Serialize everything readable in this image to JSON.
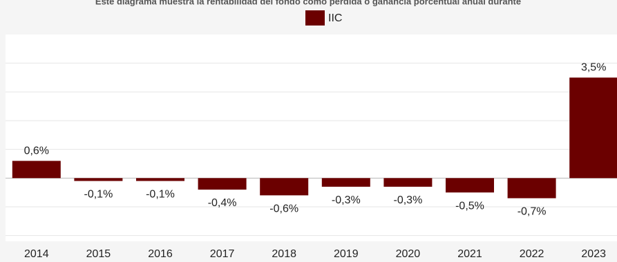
{
  "chart_data": {
    "type": "bar",
    "title": "Este diagrama muestra la rentabilidad del fondo como pérdida o ganancia porcentual anual durante",
    "legend": "IIC",
    "color": "#6b0000",
    "categories": [
      "2014",
      "2015",
      "2016",
      "2017",
      "2018",
      "2019",
      "2020",
      "2021",
      "2022",
      "2023"
    ],
    "values": [
      0.6,
      -0.1,
      -0.1,
      -0.4,
      -0.6,
      -0.3,
      -0.3,
      -0.5,
      -0.7,
      3.5
    ],
    "value_labels": [
      "0,6%",
      "-0,1%",
      "-0,1%",
      "-0,4%",
      "-0,6%",
      "-0,3%",
      "-0,3%",
      "-0,5%",
      "-0,7%",
      "3,5%"
    ],
    "ylim": [
      -2.2,
      5
    ],
    "yticks": [
      -2,
      -1,
      0,
      1,
      2,
      3,
      4
    ],
    "grid": true
  }
}
